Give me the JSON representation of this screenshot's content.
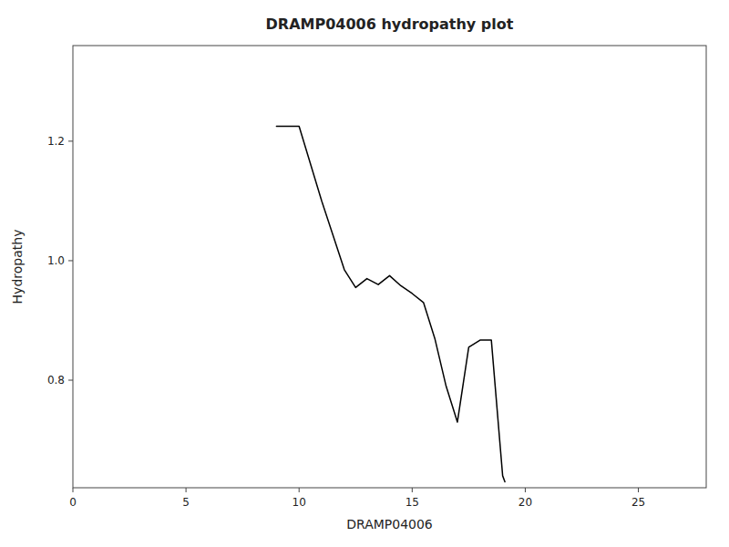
{
  "chart_data": {
    "type": "line",
    "title": "DRAMP04006 hydropathy plot",
    "xlabel": "DRAMP04006",
    "ylabel": "Hydropathy",
    "x": [
      9,
      10,
      11,
      12,
      12.5,
      13,
      13.5,
      14,
      14.5,
      15,
      15.5,
      16,
      16.5,
      17,
      17.5,
      18,
      18.5,
      19,
      19.1
    ],
    "series": [
      {
        "color": "#000000",
        "values": [
          1.225,
          1.225,
          1.1,
          0.985,
          0.955,
          0.97,
          0.96,
          0.975,
          0.958,
          0.945,
          0.93,
          0.87,
          0.79,
          0.73,
          0.855,
          0.867,
          0.867,
          0.64,
          0.63
        ]
      }
    ],
    "xlim": [
      0,
      28
    ],
    "ylim": [
      0.62,
      1.36
    ],
    "xticks": [
      0,
      5,
      10,
      15,
      20,
      25
    ],
    "yticks": [
      0.8,
      {
        "value": 1.0,
        "label": "1.0"
      },
      1.2
    ],
    "grid": false
  }
}
